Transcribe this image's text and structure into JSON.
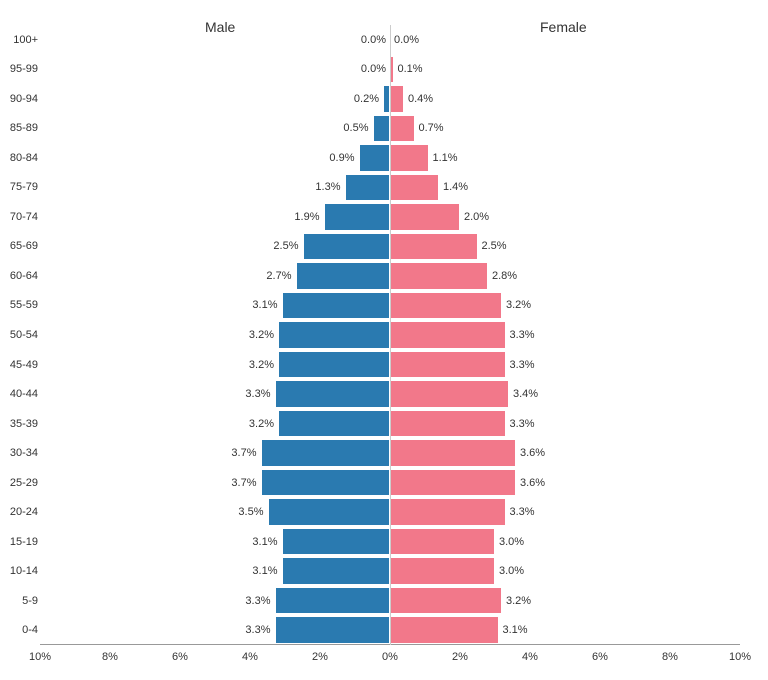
{
  "pyramid": {
    "type": "population-pyramid",
    "male_label": "Male",
    "female_label": "Female",
    "male_color": "#2a7ab0",
    "female_color": "#f2788a",
    "background_color": "#ffffff",
    "bar_border_color": "#ffffff",
    "axis_color": "#999999",
    "label_fontsize": 11,
    "header_fontsize": 14,
    "value_suffix": "%",
    "x_max": 10,
    "x_ticks_left": [
      "10%",
      "8%",
      "6%",
      "4%",
      "2%",
      "0%"
    ],
    "x_ticks_right": [
      "2%",
      "4%",
      "6%",
      "8%",
      "10%"
    ],
    "age_groups": [
      {
        "label": "100+",
        "male": 0.0,
        "female": 0.0
      },
      {
        "label": "95-99",
        "male": 0.0,
        "female": 0.1
      },
      {
        "label": "90-94",
        "male": 0.2,
        "female": 0.4
      },
      {
        "label": "85-89",
        "male": 0.5,
        "female": 0.7
      },
      {
        "label": "80-84",
        "male": 0.9,
        "female": 1.1
      },
      {
        "label": "75-79",
        "male": 1.3,
        "female": 1.4
      },
      {
        "label": "70-74",
        "male": 1.9,
        "female": 2.0
      },
      {
        "label": "65-69",
        "male": 2.5,
        "female": 2.5
      },
      {
        "label": "60-64",
        "male": 2.7,
        "female": 2.8
      },
      {
        "label": "55-59",
        "male": 3.1,
        "female": 3.2
      },
      {
        "label": "50-54",
        "male": 3.2,
        "female": 3.3
      },
      {
        "label": "45-49",
        "male": 3.2,
        "female": 3.3
      },
      {
        "label": "40-44",
        "male": 3.3,
        "female": 3.4
      },
      {
        "label": "35-39",
        "male": 3.2,
        "female": 3.3
      },
      {
        "label": "30-34",
        "male": 3.7,
        "female": 3.6
      },
      {
        "label": "25-29",
        "male": 3.7,
        "female": 3.6
      },
      {
        "label": "20-24",
        "male": 3.5,
        "female": 3.3
      },
      {
        "label": "15-19",
        "male": 3.1,
        "female": 3.0
      },
      {
        "label": "10-14",
        "male": 3.1,
        "female": 3.0
      },
      {
        "label": "5-9",
        "male": 3.3,
        "female": 3.2
      },
      {
        "label": "0-4",
        "male": 3.3,
        "female": 3.1
      }
    ]
  }
}
